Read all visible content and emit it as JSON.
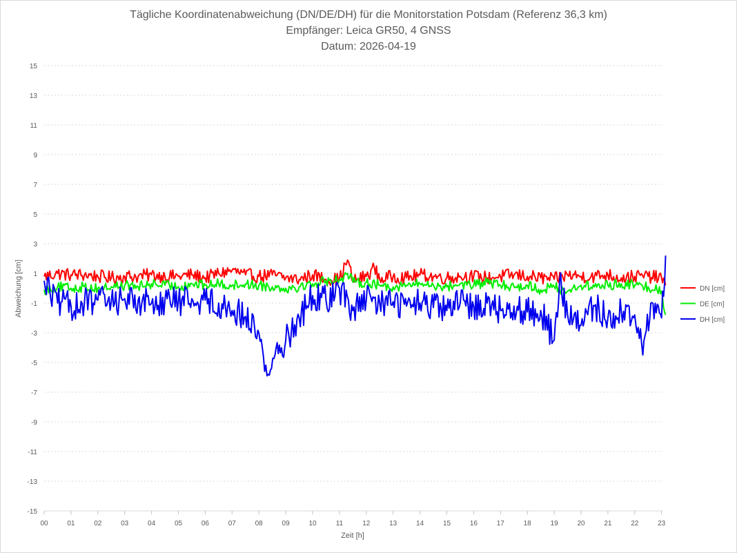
{
  "chart_data": {
    "type": "line",
    "title_lines": [
      "Tägliche Koordinatenabweichung (DN/DE/DH) für die Monitorstation Potsdam (Referenz 36,3 km)",
      "Empfänger: Leica GR50, 4 GNSS",
      "Datum: 2026-04-19"
    ],
    "xlabel": "Zeit [h]",
    "ylabel": "Abweichung [cm]",
    "xlim": [
      0,
      23.25
    ],
    "ylim": [
      -15,
      15
    ],
    "yticks": [
      15,
      13,
      11,
      9,
      7,
      5,
      3,
      1,
      -1,
      -3,
      -5,
      -7,
      -9,
      -11,
      -13,
      -15
    ],
    "xtick_labels": [
      "00",
      "01",
      "02",
      "03",
      "04",
      "05",
      "06",
      "07",
      "08",
      "09",
      "10",
      "11",
      "12",
      "13",
      "14",
      "15",
      "16",
      "17",
      "18",
      "19",
      "20",
      "21",
      "22",
      "23"
    ],
    "grid": "horizontal dotted",
    "legend_position": "right",
    "series": [
      {
        "name": "DN [cm]",
        "color": "#ff0000",
        "points": [
          [
            0,
            0.8
          ],
          [
            0.5,
            1.0
          ],
          [
            1,
            0.9
          ],
          [
            1.5,
            0.9
          ],
          [
            2,
            0.8
          ],
          [
            2.5,
            0.7
          ],
          [
            3,
            0.8
          ],
          [
            3.5,
            0.8
          ],
          [
            4,
            0.9
          ],
          [
            4.5,
            0.8
          ],
          [
            5,
            0.8
          ],
          [
            5.5,
            0.9
          ],
          [
            6,
            0.7
          ],
          [
            6.5,
            1.0
          ],
          [
            7,
            1.2
          ],
          [
            7.5,
            0.9
          ],
          [
            8,
            0.8
          ],
          [
            8.5,
            0.9
          ],
          [
            9,
            0.7
          ],
          [
            9.5,
            0.6
          ],
          [
            10,
            0.9
          ],
          [
            10.5,
            0.6
          ],
          [
            11,
            0.6
          ],
          [
            11.3,
            1.9
          ],
          [
            11.5,
            0.5
          ],
          [
            12,
            0.8
          ],
          [
            12.3,
            1.4
          ],
          [
            12.5,
            0.6
          ],
          [
            13,
            0.8
          ],
          [
            13.5,
            0.7
          ],
          [
            14,
            0.9
          ],
          [
            14.5,
            0.8
          ],
          [
            15,
            0.7
          ],
          [
            15.5,
            0.8
          ],
          [
            16,
            0.8
          ],
          [
            16.5,
            0.7
          ],
          [
            17,
            0.8
          ],
          [
            17.5,
            0.9
          ],
          [
            18,
            0.8
          ],
          [
            18.5,
            0.7
          ],
          [
            19,
            0.6
          ],
          [
            19.5,
            0.9
          ],
          [
            20,
            0.8
          ],
          [
            20.5,
            0.8
          ],
          [
            21,
            0.9
          ],
          [
            21.5,
            0.7
          ],
          [
            22,
            0.8
          ],
          [
            22.5,
            0.8
          ],
          [
            23,
            0.7
          ],
          [
            23.15,
            0.2
          ]
        ]
      },
      {
        "name": "DE [cm]",
        "color": "#00ee00",
        "points": [
          [
            0,
            -0.1
          ],
          [
            0.5,
            0.1
          ],
          [
            1,
            0.0
          ],
          [
            1.5,
            0.1
          ],
          [
            2,
            0.0
          ],
          [
            2.5,
            0.1
          ],
          [
            3,
            0.2
          ],
          [
            3.5,
            0.1
          ],
          [
            4,
            0.3
          ],
          [
            4.5,
            0.2
          ],
          [
            5,
            0.1
          ],
          [
            5.5,
            0.3
          ],
          [
            6,
            0.2
          ],
          [
            6.5,
            0.3
          ],
          [
            7,
            0.2
          ],
          [
            7.5,
            0.3
          ],
          [
            8,
            0.2
          ],
          [
            8.5,
            0.1
          ],
          [
            9,
            0.0
          ],
          [
            9.5,
            0.1
          ],
          [
            10,
            0.3
          ],
          [
            10.5,
            0.5
          ],
          [
            11,
            0.6
          ],
          [
            11.3,
            1.0
          ],
          [
            11.5,
            0.4
          ],
          [
            12,
            0.4
          ],
          [
            12.5,
            0.2
          ],
          [
            13,
            0.1
          ],
          [
            13.5,
            0.2
          ],
          [
            14,
            0.3
          ],
          [
            14.5,
            0.2
          ],
          [
            15,
            0.1
          ],
          [
            15.5,
            0.3
          ],
          [
            16,
            0.2
          ],
          [
            16.5,
            0.4
          ],
          [
            17,
            0.2
          ],
          [
            17.5,
            0.1
          ],
          [
            18,
            0.2
          ],
          [
            18.5,
            -0.1
          ],
          [
            19,
            0.1
          ],
          [
            19.5,
            -0.2
          ],
          [
            20,
            0.2
          ],
          [
            20.5,
            0.1
          ],
          [
            21,
            0.2
          ],
          [
            21.5,
            0.3
          ],
          [
            22,
            0.2
          ],
          [
            22.5,
            0.1
          ],
          [
            23,
            -0.2
          ],
          [
            23.15,
            -1.8
          ]
        ]
      },
      {
        "name": "DH [cm]",
        "color": "#0000ee",
        "points": [
          [
            0,
            0.5
          ],
          [
            0.5,
            -1.0
          ],
          [
            1,
            -1.2
          ],
          [
            1.5,
            -1.0
          ],
          [
            2,
            -0.8
          ],
          [
            2.5,
            -0.9
          ],
          [
            3,
            -0.7
          ],
          [
            3.5,
            -0.8
          ],
          [
            4,
            -1.0
          ],
          [
            4.5,
            -0.8
          ],
          [
            5,
            -0.9
          ],
          [
            5.5,
            -0.7
          ],
          [
            6,
            -0.8
          ],
          [
            6.5,
            -1.0
          ],
          [
            7,
            -1.5
          ],
          [
            7.5,
            -1.9
          ],
          [
            8,
            -3.0
          ],
          [
            8.3,
            -5.9
          ],
          [
            8.6,
            -4.5
          ],
          [
            9,
            -3.5
          ],
          [
            9.5,
            -2.0
          ],
          [
            10,
            -0.5
          ],
          [
            10.5,
            -0.8
          ],
          [
            11,
            0.0
          ],
          [
            11.5,
            -1.5
          ],
          [
            12,
            -0.8
          ],
          [
            12.5,
            -1.0
          ],
          [
            13,
            -0.9
          ],
          [
            13.5,
            -1.2
          ],
          [
            14,
            -1.0
          ],
          [
            14.5,
            -1.3
          ],
          [
            15,
            -1.5
          ],
          [
            15.5,
            -1.0
          ],
          [
            16,
            -1.2
          ],
          [
            16.5,
            -1.0
          ],
          [
            17,
            -1.5
          ],
          [
            17.5,
            -1.2
          ],
          [
            18,
            -1.6
          ],
          [
            18.5,
            -1.5
          ],
          [
            19,
            -3.5
          ],
          [
            19.2,
            0.5
          ],
          [
            19.5,
            -1.8
          ],
          [
            20,
            -2.5
          ],
          [
            20.5,
            -1.2
          ],
          [
            21,
            -2.0
          ],
          [
            21.5,
            -1.6
          ],
          [
            22,
            -1.8
          ],
          [
            22.3,
            -4.5
          ],
          [
            22.6,
            -1.0
          ],
          [
            23,
            -2.0
          ],
          [
            23.15,
            2.2
          ]
        ]
      }
    ]
  }
}
